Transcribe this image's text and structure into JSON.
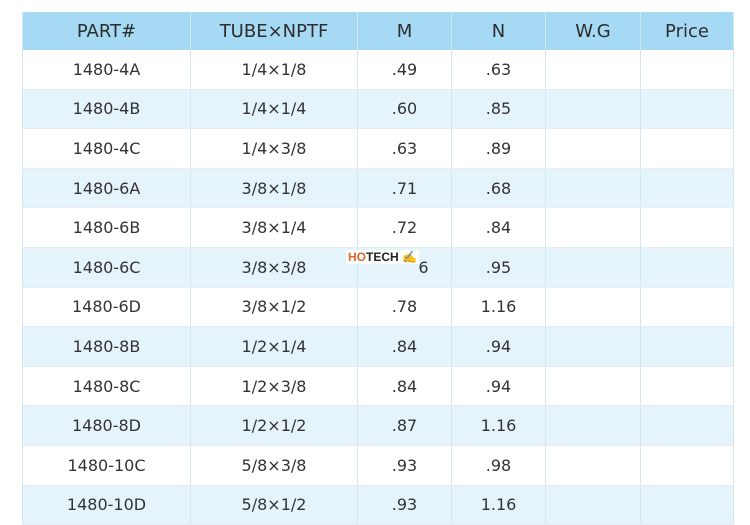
{
  "headers": [
    "PART#",
    "TUBE×NPTF",
    "M",
    "N",
    "W.G",
    "Price"
  ],
  "rows": [
    [
      "1480-4A",
      "1/4×1/8",
      ".49",
      ".63",
      "",
      ""
    ],
    [
      "1480-4B",
      "1/4×1/4",
      ".60",
      ".85",
      "",
      ""
    ],
    [
      "1480-4C",
      "1/4×3/8",
      ".63",
      ".89",
      "",
      ""
    ],
    [
      "1480-6A",
      "3/8×1/8",
      ".71",
      ".68",
      "",
      ""
    ],
    [
      "1480-6B",
      "3/8×1/4",
      ".72",
      ".84",
      "",
      ""
    ],
    [
      "1480-6C",
      "3/8×3/8",
      "6",
      ".95",
      "",
      ""
    ],
    [
      "1480-6D",
      "3/8×1/2",
      ".78",
      "1.16",
      "",
      ""
    ],
    [
      "1480-8B",
      "1/2×1/4",
      ".84",
      ".94",
      "",
      ""
    ],
    [
      "1480-8C",
      "1/2×3/8",
      ".84",
      ".94",
      "",
      ""
    ],
    [
      "1480-8D",
      "1/2×1/2",
      ".87",
      "1.16",
      "",
      ""
    ],
    [
      "1480-10C",
      "5/8×3/8",
      ".93",
      ".98",
      "",
      ""
    ],
    [
      "1480-10D",
      "5/8×1/2",
      ".93",
      "1.16",
      "",
      ""
    ]
  ],
  "watermark": {
    "ho": "HO",
    "tech": "TECH"
  },
  "colors": {
    "header": "#a6d9f4",
    "alt_row": "#e5f3fb"
  }
}
